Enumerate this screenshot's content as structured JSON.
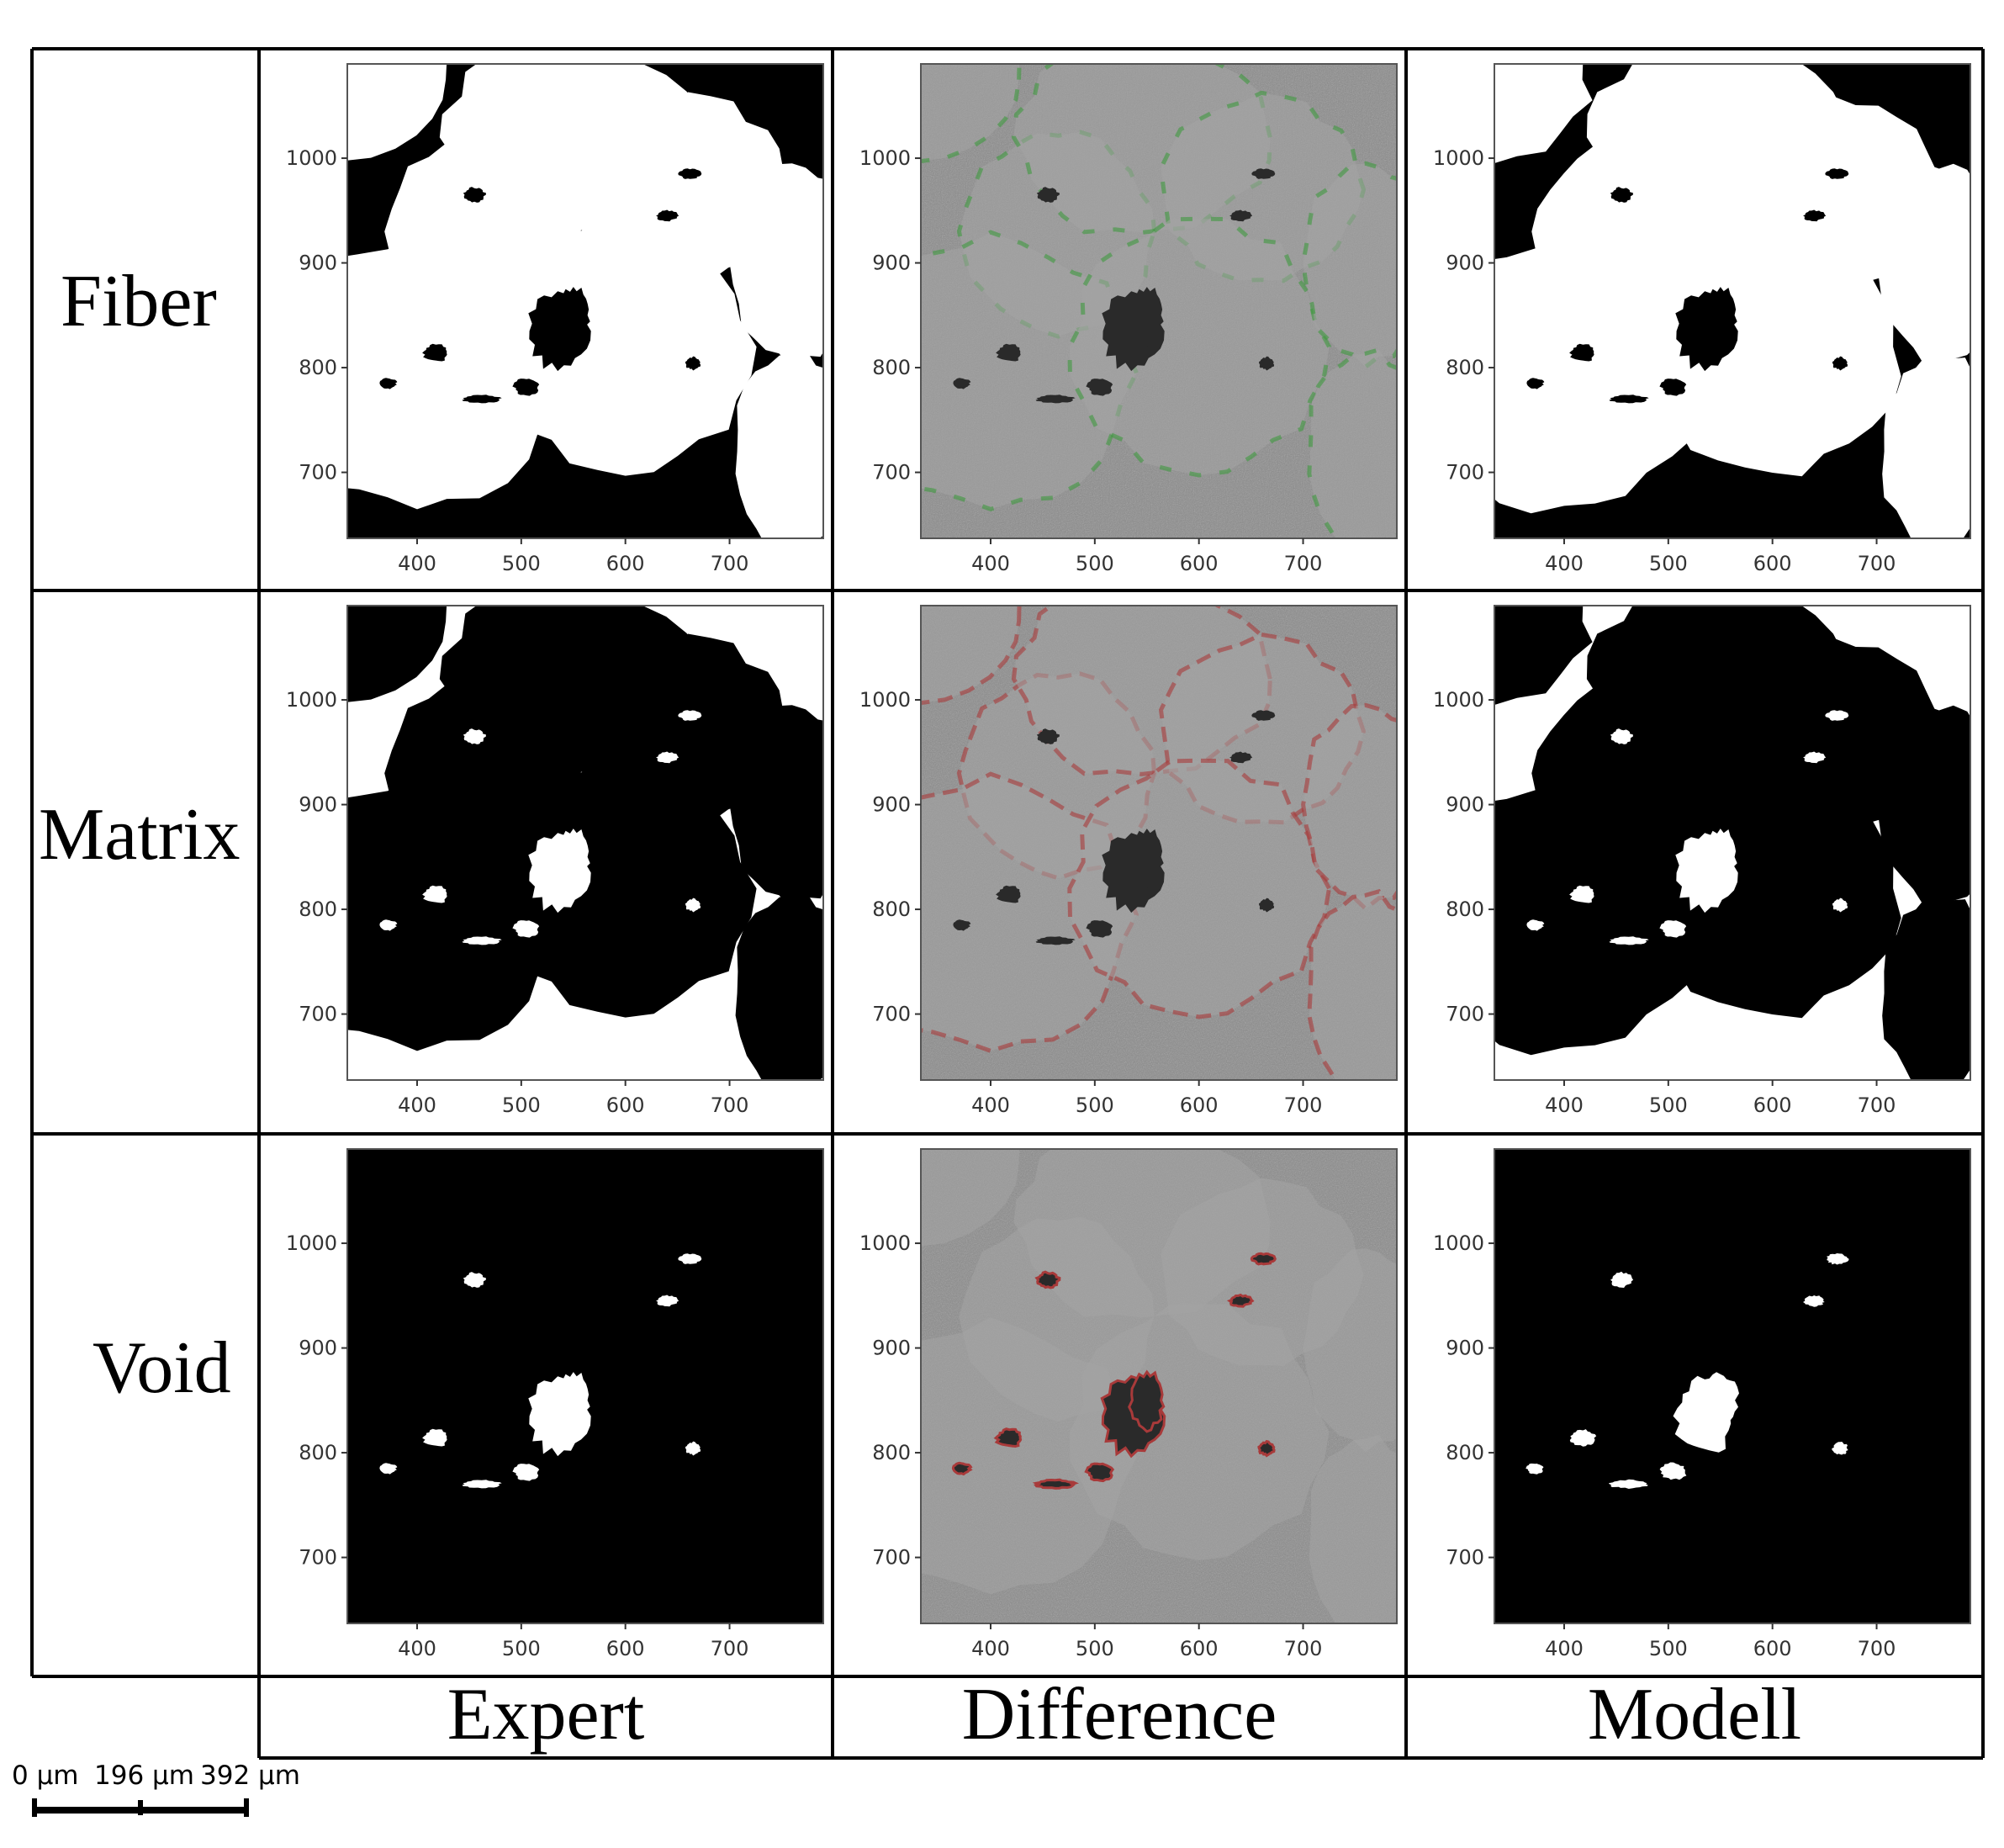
{
  "row_labels": [
    "Fiber",
    "Matrix",
    "Void"
  ],
  "column_labels": [
    "Expert",
    "Difference",
    "Modell"
  ],
  "axes": {
    "x_ticks": [
      "400",
      "500",
      "600",
      "700"
    ],
    "y_ticks": [
      "1000",
      "900",
      "800",
      "700"
    ]
  },
  "scale_bar": {
    "labels": [
      "0 µm",
      "196 µm",
      "392 µm"
    ]
  },
  "colors": {
    "mask_foreground": "#ffffff",
    "mask_background": "#000000",
    "difference_background": "#8a8a8a",
    "difference_green": "#3f9a3f",
    "difference_red": "#a83a3a",
    "void_dark": "#2a2a2a"
  }
}
